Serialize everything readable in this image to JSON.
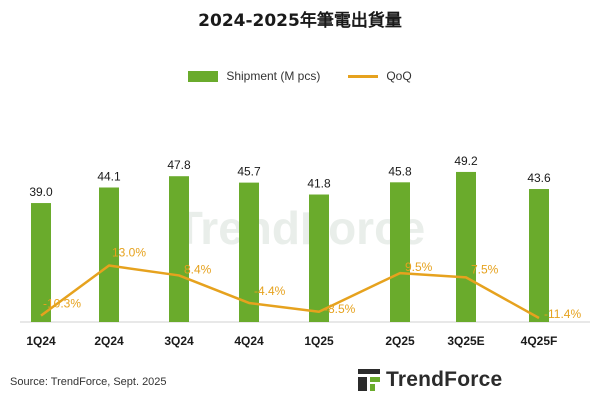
{
  "chart_data": {
    "type": "bar",
    "title": "2024-2025年筆電出貨量",
    "categories": [
      "1Q24",
      "2Q24",
      "3Q24",
      "4Q24",
      "1Q25",
      "2Q25",
      "3Q25E",
      "4Q25F"
    ],
    "series": [
      {
        "name": "Shipment (M pcs)",
        "type": "bar",
        "color": "#6aab2c",
        "values": [
          39.0,
          44.1,
          47.8,
          45.7,
          41.8,
          45.8,
          49.2,
          43.6
        ],
        "labels": [
          "39.0",
          "44.1",
          "47.8",
          "45.7",
          "41.8",
          "45.8",
          "49.2",
          "43.6"
        ]
      },
      {
        "name": "QoQ",
        "type": "line",
        "color": "#e6a21e",
        "values": [
          -10.3,
          13.0,
          8.4,
          -4.4,
          -8.5,
          9.5,
          7.5,
          -11.4
        ],
        "labels": [
          "-10.3%",
          "13.0%",
          "8.4%",
          "-4.4%",
          "-8.5%",
          "9.5%",
          "7.5%",
          "-11.4%"
        ]
      }
    ],
    "legend_position": "top-center",
    "grid": false
  },
  "footer": {
    "source": "Source: TrendForce, Sept. 2025",
    "logo_text": "TrendForce"
  },
  "watermark": {
    "text": "TrendForce"
  }
}
